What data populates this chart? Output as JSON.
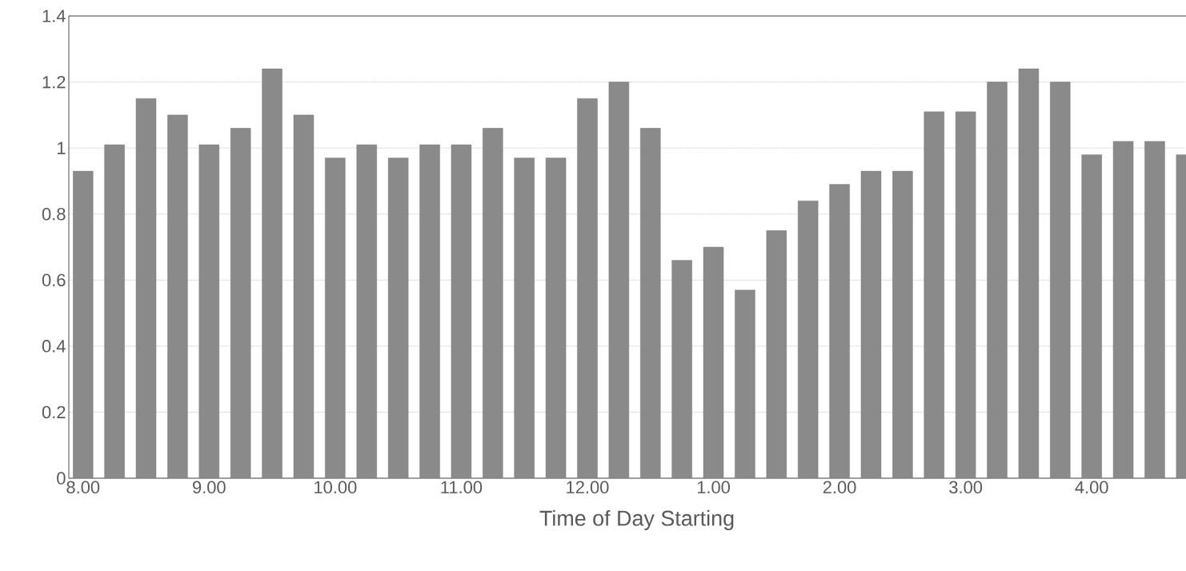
{
  "chart_data": {
    "type": "bar",
    "xlabel": "Time of Day Starting",
    "categories": [
      "8.00",
      null,
      null,
      null,
      "9.00",
      null,
      null,
      null,
      "10.00",
      null,
      null,
      null,
      "11.00",
      null,
      null,
      null,
      "12.00",
      null,
      null,
      null,
      "1.00",
      null,
      null,
      null,
      "2.00",
      null,
      null,
      null,
      "3.00",
      null,
      null,
      null,
      "4.00",
      null,
      null,
      null
    ],
    "values": [
      0.93,
      1.01,
      1.15,
      1.1,
      1.01,
      1.06,
      1.24,
      1.1,
      0.97,
      1.01,
      0.97,
      1.01,
      1.01,
      1.06,
      0.97,
      0.97,
      1.15,
      1.2,
      1.06,
      0.66,
      0.7,
      0.57,
      0.75,
      0.84,
      0.89,
      0.93,
      0.93,
      1.11,
      1.11,
      1.2,
      1.24,
      1.2,
      0.98,
      1.02,
      1.02,
      0.98
    ],
    "color": "#8a8a8a",
    "ylim": [
      0,
      1.4
    ],
    "yticks": [
      0,
      0.2,
      0.4,
      0.6,
      0.8,
      1,
      1.2,
      1.4
    ],
    "grid": "y"
  }
}
